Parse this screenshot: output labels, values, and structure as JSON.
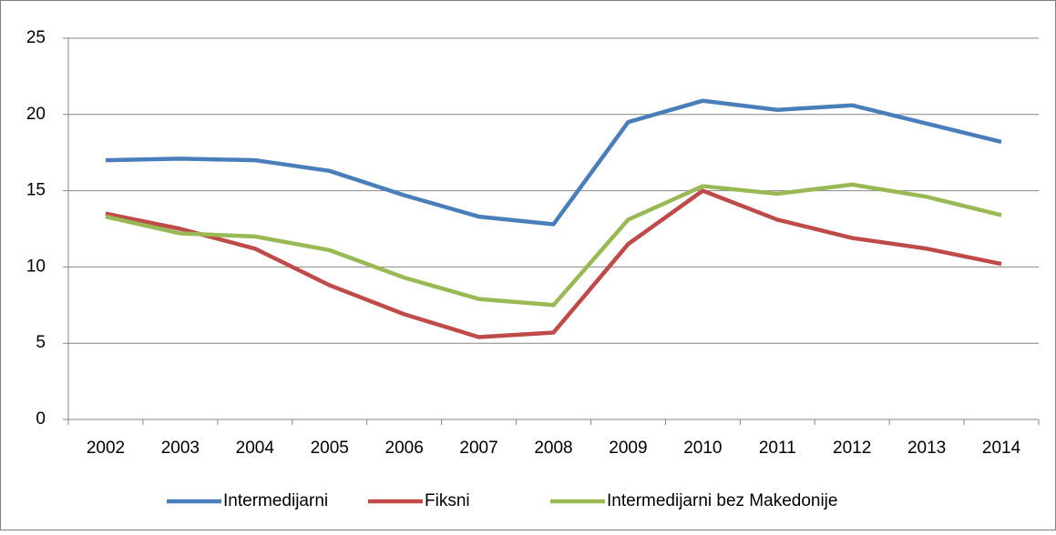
{
  "chart_data": {
    "type": "line",
    "categories": [
      "2002",
      "2003",
      "2004",
      "2005",
      "2006",
      "2007",
      "2008",
      "2009",
      "2010",
      "2011",
      "2012",
      "2013",
      "2014"
    ],
    "series": [
      {
        "name": "Intermedijarni",
        "color": "#4a7ebb",
        "values": [
          17.0,
          17.1,
          17.0,
          16.3,
          14.7,
          13.3,
          12.8,
          19.5,
          20.9,
          20.3,
          20.6,
          19.4,
          18.2
        ]
      },
      {
        "name": "Fiksni",
        "color": "#be4b48",
        "values": [
          13.5,
          12.5,
          11.2,
          8.8,
          6.9,
          5.4,
          5.7,
          11.5,
          15.0,
          13.1,
          11.9,
          11.2,
          10.2
        ]
      },
      {
        "name": "Intermedijarni bez Makedonije",
        "color": "#98b954",
        "values": [
          13.3,
          12.2,
          12.0,
          11.1,
          9.3,
          7.9,
          7.5,
          13.1,
          15.3,
          14.8,
          15.4,
          14.6,
          13.4
        ]
      }
    ],
    "ylim": [
      0,
      25
    ],
    "yticks": [
      0,
      5,
      10,
      15,
      20,
      25
    ],
    "grid": true,
    "legend": "bottom"
  }
}
